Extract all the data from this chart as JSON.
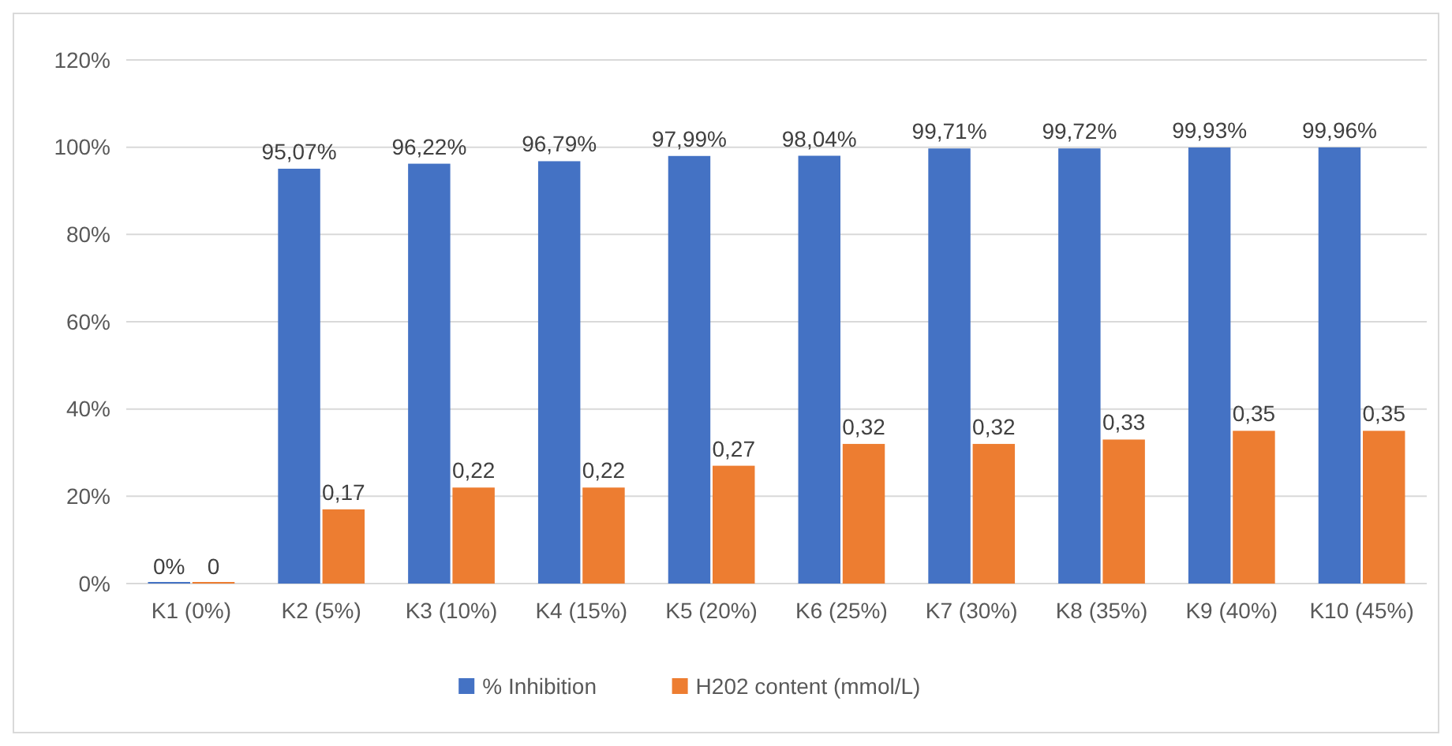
{
  "chart_data": {
    "type": "bar",
    "categories": [
      "K1 (0%)",
      "K2 (5%)",
      "K3 (10%)",
      "K4 (15%)",
      "K5 (20%)",
      "K6 (25%)",
      "K7 (30%)",
      "K8 (35%)",
      "K9 (40%)",
      "K10 (45%)"
    ],
    "series": [
      {
        "name": "% Inhibition",
        "color": "#4472c4",
        "values": [
          0,
          0.9507,
          0.9622,
          0.9679,
          0.9799,
          0.9804,
          0.9971,
          0.9972,
          0.9993,
          0.9996
        ],
        "value_labels": [
          "0%",
          "95,07%",
          "96,22%",
          "96,79%",
          "97,99%",
          "98,04%",
          "99,71%",
          "99,72%",
          "99,93%",
          "99,96%"
        ]
      },
      {
        "name": "H202 content (mmol/L)",
        "color": "#ed7d31",
        "values": [
          0,
          0.17,
          0.22,
          0.22,
          0.27,
          0.32,
          0.32,
          0.33,
          0.35,
          0.35
        ],
        "value_labels": [
          "0",
          "0,17",
          "0,22",
          "0,22",
          "0,27",
          "0,32",
          "0,32",
          "0,33",
          "0,35",
          "0,35"
        ]
      }
    ],
    "ylim": [
      0,
      1.2
    ],
    "yticks": [
      {
        "value": 0,
        "label": "0%"
      },
      {
        "value": 0.2,
        "label": "20%"
      },
      {
        "value": 0.4,
        "label": "40%"
      },
      {
        "value": 0.6,
        "label": "60%"
      },
      {
        "value": 0.8,
        "label": "80%"
      },
      {
        "value": 1,
        "label": "100%"
      },
      {
        "value": 1.2,
        "label": "120%"
      }
    ],
    "grid": "y",
    "legend": "bottom"
  }
}
